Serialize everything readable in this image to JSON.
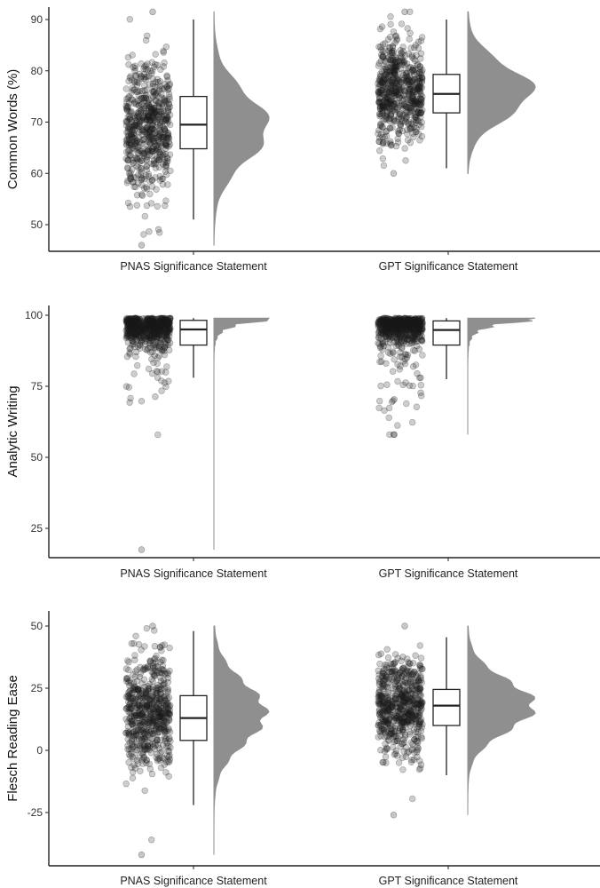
{
  "chart_data": [
    {
      "type": "raincloud",
      "ylabel": "Common Words (%)",
      "yticks": [
        50,
        60,
        70,
        80,
        90
      ],
      "ylim": [
        45,
        93
      ],
      "categories": [
        "PNAS Significance Statement",
        "GPT Significance Statement"
      ],
      "groups": [
        {
          "name": "PNAS Significance Statement",
          "box": {
            "min": 51,
            "q1": 64.8,
            "median": 69.5,
            "q3": 75.0,
            "max": 90
          },
          "range": [
            46,
            91.5
          ],
          "mode": 69,
          "spread": 6.5,
          "n": 600
        },
        {
          "name": "GPT Significance Statement",
          "box": {
            "min": 61,
            "q1": 71.8,
            "median": 75.5,
            "q3": 79.3,
            "max": 90
          },
          "range": [
            60,
            91.5
          ],
          "mode": 76,
          "spread": 5,
          "n": 600
        }
      ]
    },
    {
      "type": "raincloud",
      "ylabel": "Analytic Writing",
      "yticks": [
        25,
        50,
        75,
        100
      ],
      "ylim": [
        14,
        102
      ],
      "categories": [
        "PNAS Significance Statement",
        "GPT Significance Statement"
      ],
      "groups": [
        {
          "name": "PNAS Significance Statement",
          "box": {
            "min": 78,
            "q1": 89.5,
            "median": 95.0,
            "q3": 98.2,
            "max": 99
          },
          "range": [
            17.5,
            99
          ],
          "mode": 99,
          "spread": 7,
          "n": 600
        },
        {
          "name": "GPT Significance Statement",
          "box": {
            "min": 77.5,
            "q1": 89.5,
            "median": 94.8,
            "q3": 98.0,
            "max": 99
          },
          "range": [
            58,
            99
          ],
          "mode": 99,
          "spread": 7,
          "n": 600
        }
      ]
    },
    {
      "type": "raincloud",
      "ylabel": "Flesch Reading Ease",
      "yticks": [
        -25,
        0,
        25,
        50
      ],
      "ylim": [
        -45,
        53
      ],
      "categories": [
        "PNAS Significance Statement",
        "GPT Significance Statement"
      ],
      "groups": [
        {
          "name": "PNAS Significance Statement",
          "box": {
            "min": -22,
            "q1": 4,
            "median": 13,
            "q3": 22,
            "max": 48
          },
          "range": [
            -42,
            50
          ],
          "mode": 15,
          "spread": 12,
          "n": 600
        },
        {
          "name": "GPT Significance Statement",
          "box": {
            "min": -10,
            "q1": 10,
            "median": 18,
            "q3": 24.5,
            "max": 45.5
          },
          "range": [
            -26,
            50
          ],
          "mode": 18,
          "spread": 10,
          "n": 600
        }
      ]
    }
  ],
  "colors": {
    "points": "#1a1a1a",
    "density": "#8f8f8f",
    "box_stroke": "#222222",
    "axis": "#222222"
  }
}
